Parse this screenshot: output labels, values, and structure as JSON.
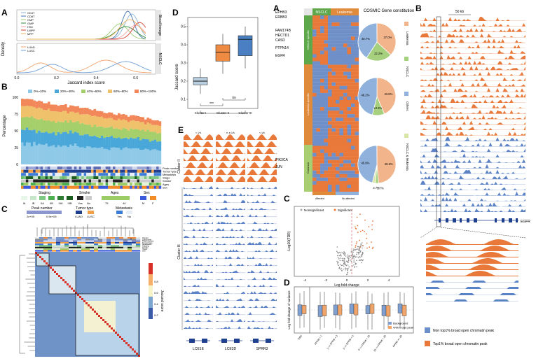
{
  "figure_left": {
    "panelA": {
      "letter": "A",
      "ylabel": "Density",
      "xlabel": "Jaccard index score",
      "xticks": [
        "0.0",
        "0.2",
        "0.4",
        "0.6"
      ],
      "legend_top": [
        "CD4T",
        "CD8T",
        "CMP",
        "GMP",
        "HSC",
        "LMPP",
        "MPP"
      ],
      "legend_bottom": [
        "LUAD",
        "LUSC"
      ],
      "strip_top": "Blood lineage",
      "strip_bottom": "NSCLC",
      "colors": {
        "CD4T": "#8bb3d9",
        "CD8T": "#3c6fb0",
        "CMP": "#9ccc72",
        "GMP": "#2f8a3b",
        "HSC": "#f3a3a3",
        "LMPP": "#d6402f",
        "MPP": "#f0b560",
        "LUAD": "#f2a36b",
        "LUSC": "#6f9fd6"
      }
    },
    "panelB": {
      "letter": "B",
      "ylabel": "Percentage",
      "yticks": [
        "0",
        "25",
        "50",
        "75",
        "100"
      ],
      "legend": [
        "0%~20%",
        "20%~40%",
        "40%~60%",
        "60%~80%",
        "80%~100%"
      ],
      "legend_colors": [
        "#8ec9e8",
        "#4aa7d9",
        "#a5cf6a",
        "#f0c16b",
        "#f2885a"
      ],
      "track_labels": [
        "Peak number",
        "Tumor type",
        "Metastasis",
        "Stage",
        "Smoke",
        "Ages",
        "Sex"
      ],
      "staging_title": "Staging",
      "staging_levels": [
        "IA",
        "IB",
        "IIA",
        "IIB",
        "IIIA",
        "IIIB"
      ],
      "smoke_title": "Smoke",
      "smoke_levels": [
        "Yes",
        "No"
      ],
      "ages_title": "Ages",
      "ages_levels": [
        "75",
        "40"
      ],
      "sex_title": "Sex",
      "sex_levels": [
        "M",
        "F"
      ],
      "peak_title": "Peak number",
      "peak_levels": [
        "2e+05",
        "0.5e+05"
      ],
      "tumor_title": "Tumor type",
      "tumor_levels": [
        "LUAD",
        "LUSC"
      ],
      "meta_title": "Metastasis",
      "meta_levels": [
        "Yes",
        "No"
      ]
    },
    "panelC": {
      "letter": "C",
      "track_labels": [
        "Cluster",
        "Subcluster",
        "Peak number",
        "Tumor Type",
        "Metastasis",
        "Staging",
        "Smoke",
        "Years",
        "Sex"
      ],
      "clusters": [
        "I",
        "II",
        "III"
      ],
      "subclusters": [
        "II",
        "S3",
        "S2",
        "S1"
      ],
      "colorbar_title": "Jaccard score",
      "colorbar_ticks": [
        "0.2",
        "0.4",
        "0.6",
        "0.8"
      ]
    },
    "panelD": {
      "letter": "D",
      "ylabel": "Jaccard score",
      "yticks": [
        "0.1",
        "0.2",
        "0.3",
        "0.4",
        "0.5"
      ],
      "categories": [
        "Cluster I",
        "Cluster II",
        "Cluster III"
      ],
      "colors": [
        "#b9cfe0",
        "#ee8a42",
        "#4a7fc4"
      ],
      "sig_low": "***",
      "sig_high": "ns"
    },
    "panelE": {
      "letter": "E",
      "scales": [
        "1 kb",
        "0.5 kb",
        "1 kb"
      ],
      "genes": [
        "LCE1E",
        "LCE3D",
        "SPRR3"
      ],
      "cluster_labels": [
        "Cluster II",
        "Cluster III"
      ]
    }
  },
  "figure_right": {
    "panelA": {
      "letter": "A",
      "genes_top": [
        "EPHB3",
        "ERBB3",
        "FAM174B",
        "HECTD1",
        "CASD",
        "PTPN14",
        "EGFR"
      ],
      "genes_bottom": [
        "PIK3CA",
        "JUN"
      ],
      "col_headers": [
        "NSCLC",
        "Leukemia"
      ],
      "side_groups": [
        "NSCLC specific",
        "Leukemia specific",
        "Common"
      ],
      "footer": [
        "Affected",
        "No affected"
      ],
      "title": "COSMIC Gene constitution",
      "pies": [
        {
          "labels": [
            "37.0%",
            "22.2%",
            "40.7%"
          ]
        },
        {
          "labels": [
            "43.6%",
            "10.3%",
            "46.2%"
          ]
        },
        {
          "labels": [
            "48.6%",
            "2.7%",
            "2.7%",
            "45.9%"
          ]
        }
      ],
      "pie_legend": [
        "Leukemia",
        "NSCLC",
        "Others",
        "NSCLC & leukemia"
      ],
      "pie_colors": [
        "#f2b48a",
        "#a6cf7e",
        "#8fb1dc",
        "#d8e6a8"
      ]
    },
    "panelB": {
      "letter": "B",
      "scale": "50 kb",
      "gene": "EGFR",
      "legend": [
        "Non top1% broad open chromatin peak",
        "Top1% broad open chromatin peak"
      ],
      "colors": [
        "#6b8fc9",
        "#e8793a"
      ]
    },
    "panelC": {
      "letter": "C",
      "legend": [
        "Nonsignificant",
        "Significant"
      ],
      "xlabel": "Log fold change",
      "ylabel": "-Log10(FDR)",
      "xticks": [
        "-4",
        "-2",
        "0",
        "2",
        "4"
      ]
    },
    "panelD": {
      "letter": "D",
      "ylabel": "Log fold change of variance",
      "categories": [
        "Total",
        "FPKM < 1",
        "1 <= FPKM < 3",
        "3 <= FPKM < 5",
        "5 <= FPKM < 10",
        "10 <= FPKM < 20",
        "FPKM >= 20"
      ],
      "legend": [
        "Background",
        "With broad peak"
      ],
      "colors": [
        "#7f9fd0",
        "#f0a46a"
      ]
    }
  }
}
